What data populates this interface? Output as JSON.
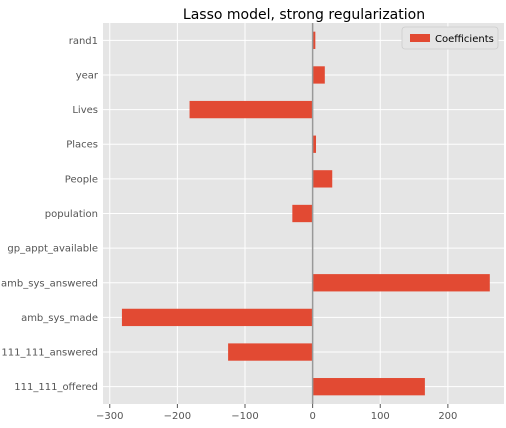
{
  "chart_data": {
    "type": "bar",
    "orientation": "horizontal",
    "title": "Lasso model, strong regularization",
    "xlabel": "",
    "ylabel": "",
    "categories": [
      "rand1",
      "year",
      "Lives",
      "Places",
      "People",
      "population",
      "gp_appt_available",
      "amb_sys_answered",
      "amb_sys_made",
      "111_111_answered",
      "111_111_offered"
    ],
    "series": [
      {
        "name": "Coefficients",
        "values": [
          4,
          18,
          -182,
          5,
          29,
          -30,
          0,
          262,
          -282,
          -125,
          166
        ]
      }
    ],
    "xlim": [
      -310,
      283
    ],
    "xticks": [
      -300,
      -200,
      -100,
      0,
      100,
      200
    ],
    "xtick_labels": [
      "−300",
      "−200",
      "−100",
      "0",
      "100",
      "200"
    ],
    "grid": true,
    "legend": "top-right",
    "colors": {
      "bar": "#e24a33",
      "background": "#e5e5e5",
      "grid": "#ffffff",
      "zero_line": "#999999"
    }
  }
}
